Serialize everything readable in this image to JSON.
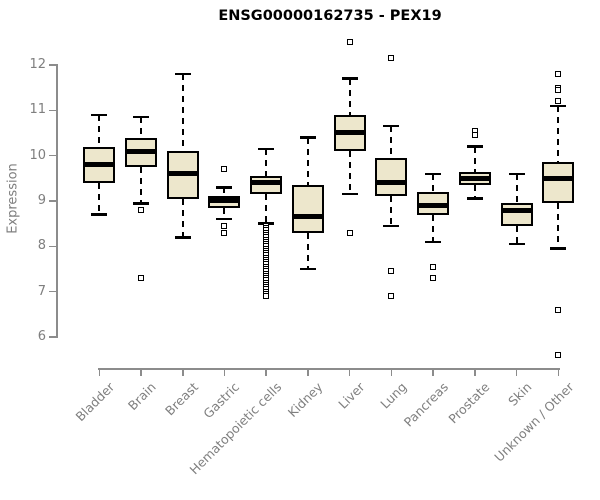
{
  "chart_data": {
    "type": "boxplot",
    "title": "ENSG00000162735 - PEX19",
    "ylabel": "Expression",
    "xlabel": "",
    "yticks": [
      6,
      7,
      8,
      9,
      10,
      11,
      12
    ],
    "ylim": [
      5.4,
      12.6
    ],
    "grid": false,
    "legend": false,
    "colors": {
      "box_fill": "#ede7cc",
      "box_stroke": "#000000",
      "axis_line": "#8c8c8c",
      "tick_text": "#7f7f7f",
      "title_text": "#000000"
    },
    "categories": [
      "Bladder",
      "Brain",
      "Breast",
      "Gastric",
      "Hematopoietic cells",
      "Kidney",
      "Liver",
      "Lung",
      "Pancreas",
      "Prostate",
      "Skin",
      "Unknown / Other"
    ],
    "series": [
      {
        "category": "Bladder",
        "low": 8.7,
        "q1": 9.4,
        "median": 9.8,
        "q3": 10.2,
        "high": 10.9,
        "outliers": []
      },
      {
        "category": "Brain",
        "low": 8.95,
        "q1": 9.75,
        "median": 10.1,
        "q3": 10.4,
        "high": 10.85,
        "outliers": [
          8.8,
          7.3
        ]
      },
      {
        "category": "Breast",
        "low": 8.2,
        "q1": 9.05,
        "median": 9.6,
        "q3": 10.1,
        "high": 11.8,
        "outliers": []
      },
      {
        "category": "Gastric",
        "low": 8.6,
        "q1": 8.85,
        "median": 9.0,
        "q3": 9.1,
        "high": 9.3,
        "outliers": [
          9.7,
          8.45,
          8.3
        ]
      },
      {
        "category": "Hematopoietic cells",
        "low": 8.5,
        "q1": 9.15,
        "median": 9.4,
        "q3": 9.55,
        "high": 10.15,
        "outliers": [
          8.45,
          8.4,
          8.35,
          8.3,
          8.25,
          8.2,
          8.15,
          8.1,
          8.05,
          8.0,
          7.95,
          7.9,
          7.85,
          7.8,
          7.75,
          7.7,
          7.65,
          7.6,
          7.55,
          7.5,
          7.45,
          7.4,
          7.35,
          7.3,
          7.25,
          7.2,
          7.15,
          7.1,
          7.05,
          7.0,
          6.95,
          6.9
        ]
      },
      {
        "category": "Kidney",
        "low": 7.5,
        "q1": 8.3,
        "median": 8.65,
        "q3": 9.35,
        "high": 10.4,
        "outliers": []
      },
      {
        "category": "Liver",
        "low": 9.15,
        "q1": 10.1,
        "median": 10.5,
        "q3": 10.9,
        "high": 11.7,
        "outliers": [
          12.5,
          8.3
        ]
      },
      {
        "category": "Lung",
        "low": 8.45,
        "q1": 9.1,
        "median": 9.4,
        "q3": 9.95,
        "high": 10.65,
        "outliers": [
          12.15,
          7.45,
          6.9
        ]
      },
      {
        "category": "Pancreas",
        "low": 8.1,
        "q1": 8.7,
        "median": 8.9,
        "q3": 9.2,
        "high": 9.6,
        "outliers": [
          7.55,
          7.3
        ]
      },
      {
        "category": "Prostate",
        "low": 9.05,
        "q1": 9.35,
        "median": 9.5,
        "q3": 9.65,
        "high": 10.2,
        "outliers": [
          10.55,
          10.45
        ]
      },
      {
        "category": "Skin",
        "low": 8.05,
        "q1": 8.45,
        "median": 8.8,
        "q3": 8.95,
        "high": 9.6,
        "outliers": []
      },
      {
        "category": "Unknown / Other",
        "low": 7.95,
        "q1": 8.95,
        "median": 9.5,
        "q3": 9.85,
        "high": 11.1,
        "outliers": [
          11.8,
          11.5,
          11.45,
          11.2,
          6.6,
          5.6
        ]
      }
    ]
  }
}
